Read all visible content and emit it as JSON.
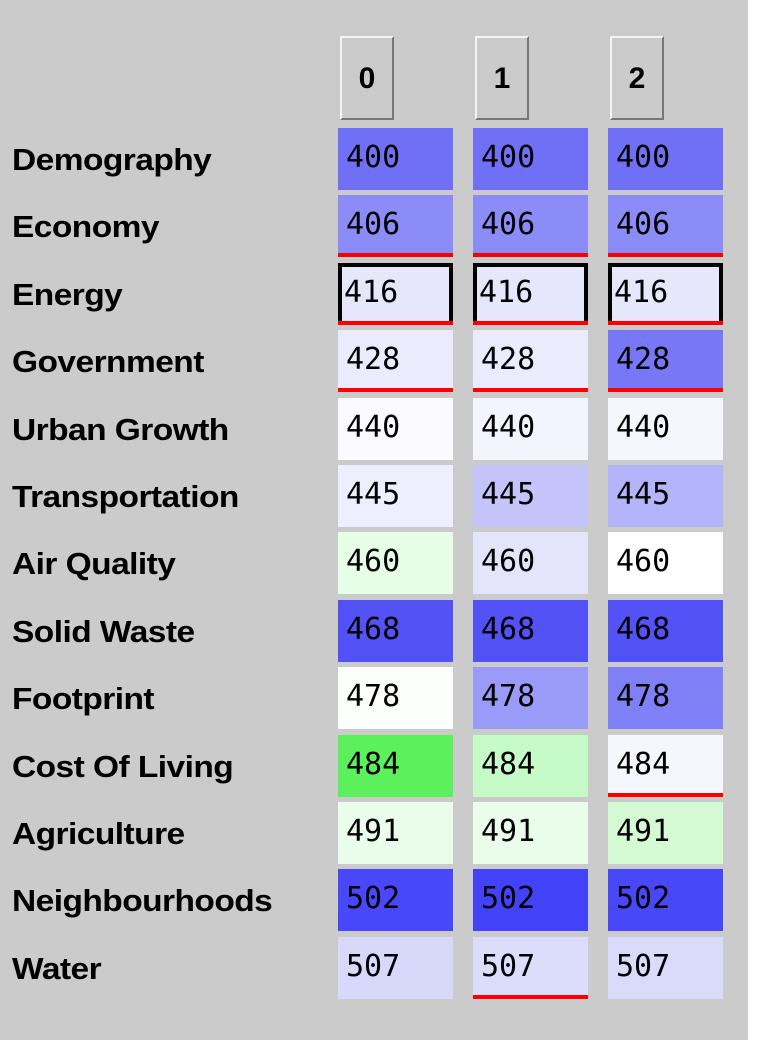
{
  "columns": [
    "0",
    "1",
    "2"
  ],
  "rows": [
    {
      "label": "Demography",
      "cells": [
        {
          "text": "400",
          "color": "#7070f6"
        },
        {
          "text": "400",
          "color": "#7070f6"
        },
        {
          "text": "400",
          "color": "#7070f6"
        }
      ]
    },
    {
      "label": "Economy",
      "cells": [
        {
          "text": "406",
          "color": "#8c8cf8",
          "underline": true
        },
        {
          "text": "406",
          "color": "#8c8cf8",
          "underline": true
        },
        {
          "text": "406",
          "color": "#8c8cf8",
          "underline": true
        }
      ]
    },
    {
      "label": "Energy",
      "selected": true,
      "cells": [
        {
          "text": "416",
          "color": "#e6e6fc",
          "underline": true
        },
        {
          "text": "416",
          "color": "#e6e6fc",
          "underline": true
        },
        {
          "text": "416",
          "color": "#e6e6fc",
          "underline": true
        }
      ]
    },
    {
      "label": "Government",
      "cells": [
        {
          "text": "428",
          "color": "#ebebfd",
          "underline": true
        },
        {
          "text": "428",
          "color": "#ebebfd",
          "underline": true
        },
        {
          "text": "428",
          "color": "#7878f7",
          "underline": true
        }
      ]
    },
    {
      "label": "Urban Growth",
      "cells": [
        {
          "text": "440",
          "color": "#fafaff"
        },
        {
          "text": "440",
          "color": "#f4f4ff"
        },
        {
          "text": "440",
          "color": "#f6f6ff"
        }
      ]
    },
    {
      "label": "Transportation",
      "cells": [
        {
          "text": "445",
          "color": "#eeeeff"
        },
        {
          "text": "445",
          "color": "#c4c4fb"
        },
        {
          "text": "445",
          "color": "#b4b4fb"
        }
      ]
    },
    {
      "label": "Air Quality",
      "cells": [
        {
          "text": "460",
          "color": "#e6fde6"
        },
        {
          "text": "460",
          "color": "#e4e4fc"
        },
        {
          "text": "460",
          "color": "#ffffff"
        }
      ]
    },
    {
      "label": "Solid Waste",
      "cells": [
        {
          "text": "468",
          "color": "#5252f6"
        },
        {
          "text": "468",
          "color": "#5252f6"
        },
        {
          "text": "468",
          "color": "#5252f6"
        }
      ]
    },
    {
      "label": "Footprint",
      "cells": [
        {
          "text": "478",
          "color": "#fcfffc"
        },
        {
          "text": "478",
          "color": "#9a9af8"
        },
        {
          "text": "478",
          "color": "#8080f6"
        }
      ]
    },
    {
      "label": "Cost Of Living",
      "cells": [
        {
          "text": "484",
          "color": "#5cf05c"
        },
        {
          "text": "484",
          "color": "#c6fac6"
        },
        {
          "text": "484",
          "color": "#f6f6ff",
          "underline": true
        }
      ]
    },
    {
      "label": "Agriculture",
      "cells": [
        {
          "text": "491",
          "color": "#eafdea"
        },
        {
          "text": "491",
          "color": "#eafdea"
        },
        {
          "text": "491",
          "color": "#d4fad4"
        }
      ]
    },
    {
      "label": "Neighbourhoods",
      "cells": [
        {
          "text": "502",
          "color": "#4848fa"
        },
        {
          "text": "502",
          "color": "#4242f8"
        },
        {
          "text": "502",
          "color": "#4848f8"
        }
      ]
    },
    {
      "label": "Water",
      "cells": [
        {
          "text": "507",
          "color": "#d8d8fb"
        },
        {
          "text": "507",
          "color": "#dcdcfb",
          "underline": true
        },
        {
          "text": "507",
          "color": "#dadafb"
        }
      ]
    }
  ]
}
